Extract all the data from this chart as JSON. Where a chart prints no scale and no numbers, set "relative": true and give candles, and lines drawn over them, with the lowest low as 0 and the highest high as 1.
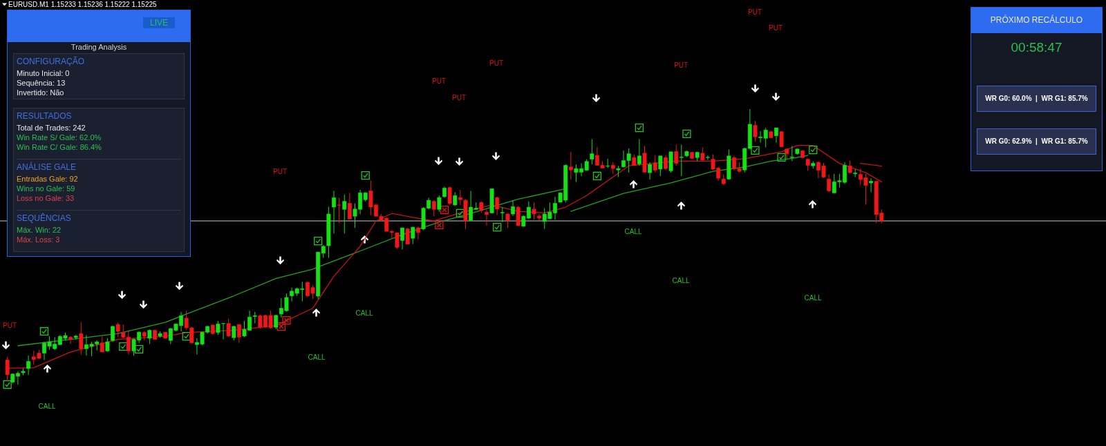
{
  "chart_data": [
    {
      "type": "candlestick",
      "title": "EURUSD.M1  1.15233 1.15236 1.15222 1.15225",
      "relative": true,
      "categories": [
        null,
        null,
        null,
        null,
        null,
        null,
        null,
        null,
        null,
        null,
        null,
        null,
        null,
        null,
        null,
        null,
        null,
        null,
        null,
        null,
        null,
        null,
        null,
        null,
        null,
        null,
        null,
        null,
        null,
        null,
        null,
        null,
        null,
        null,
        null,
        null,
        null,
        null,
        null,
        null,
        null,
        null,
        null,
        null,
        null,
        null,
        null,
        null,
        null,
        null,
        null,
        null,
        null,
        null,
        null,
        null,
        null,
        null,
        null,
        null,
        null,
        null,
        null,
        null,
        null,
        null,
        null,
        null,
        null,
        null,
        null,
        null,
        null,
        null,
        null,
        null,
        null,
        null,
        null,
        null,
        null,
        null,
        null,
        null,
        null,
        null,
        null,
        null,
        null,
        null,
        null,
        null,
        null,
        null,
        null,
        null,
        null,
        null,
        null,
        null,
        null,
        null,
        null,
        null,
        null,
        null,
        null,
        null,
        null,
        null,
        null,
        null,
        null,
        null,
        null,
        null,
        null,
        null,
        null,
        null,
        null,
        null,
        null,
        null,
        null,
        null,
        null,
        null,
        null,
        null,
        null,
        null,
        null,
        null,
        null,
        null,
        null,
        null,
        null,
        null,
        null,
        null,
        null,
        null,
        null,
        null,
        null,
        null,
        null,
        null,
        null,
        null,
        null,
        null,
        null,
        null,
        null,
        null,
        null,
        null,
        null,
        null,
        null,
        null,
        null,
        null,
        null
      ],
      "ohlc": [
        [
          0.089,
          0.101,
          0.013,
          0.036
        ],
        [
          0.009,
          0.041,
          0.005,
          0.038
        ],
        [
          0.03,
          0.047,
          0.0,
          0.041
        ],
        [
          0.043,
          0.059,
          0.034,
          0.048
        ],
        [
          0.058,
          0.105,
          0.036,
          0.084
        ],
        [
          0.101,
          0.122,
          0.072,
          0.091
        ],
        [
          0.114,
          0.126,
          0.093,
          0.095
        ],
        [
          0.114,
          0.155,
          0.089,
          0.151
        ],
        [
          0.139,
          0.176,
          0.126,
          0.155
        ],
        [
          0.13,
          0.172,
          0.126,
          0.147
        ],
        [
          0.145,
          0.18,
          0.143,
          0.175
        ],
        [
          0.168,
          0.189,
          0.16,
          0.178
        ],
        [
          0.172,
          0.176,
          0.147,
          0.164
        ],
        [
          0.171,
          0.18,
          0.164,
          0.176
        ],
        [
          0.185,
          0.226,
          0.109,
          0.13
        ],
        [
          0.13,
          0.18,
          0.105,
          0.145
        ],
        [
          0.139,
          0.155,
          0.103,
          0.147
        ],
        [
          0.147,
          0.161,
          0.124,
          0.155
        ],
        [
          0.151,
          0.176,
          0.118,
          0.118
        ],
        [
          0.122,
          0.168,
          0.119,
          0.155
        ],
        [
          0.16,
          0.214,
          0.155,
          0.211
        ],
        [
          0.218,
          0.225,
          0.172,
          0.193
        ],
        [
          0.189,
          0.218,
          0.168,
          0.172
        ],
        [
          0.172,
          0.197,
          0.109,
          0.122
        ],
        [
          0.122,
          0.168,
          0.105,
          0.164
        ],
        [
          0.161,
          0.193,
          0.151,
          0.19
        ],
        [
          0.189,
          0.193,
          0.161,
          0.176
        ],
        [
          0.168,
          0.2,
          0.147,
          0.197
        ],
        [
          0.197,
          0.2,
          0.164,
          0.164
        ],
        [
          0.176,
          0.193,
          0.17,
          0.185
        ],
        [
          0.19,
          0.191,
          0.166,
          0.168
        ],
        [
          0.16,
          0.206,
          0.147,
          0.203
        ],
        [
          0.197,
          0.222,
          0.193,
          0.22
        ],
        [
          0.214,
          0.264,
          0.193,
          0.25
        ],
        [
          0.241,
          0.268,
          0.198,
          0.206
        ],
        [
          0.206,
          0.21,
          0.151,
          0.151
        ],
        [
          0.145,
          0.168,
          0.109,
          0.153
        ],
        [
          0.147,
          0.193,
          0.143,
          0.19
        ],
        [
          0.19,
          0.214,
          0.185,
          0.211
        ],
        [
          0.216,
          0.218,
          0.18,
          0.185
        ],
        [
          0.189,
          0.231,
          0.18,
          0.22
        ],
        [
          0.221,
          0.222,
          0.164,
          0.222
        ],
        [
          0.222,
          0.239,
          0.172,
          0.176
        ],
        [
          0.17,
          0.214,
          0.16,
          0.211
        ],
        [
          0.218,
          0.218,
          0.151,
          0.172
        ],
        [
          0.176,
          0.231,
          0.172,
          0.2
        ],
        [
          0.197,
          0.268,
          0.195,
          0.245
        ],
        [
          0.247,
          0.264,
          0.222,
          0.25
        ],
        [
          0.25,
          0.253,
          0.203,
          0.208
        ],
        [
          0.251,
          0.253,
          0.206,
          0.208
        ],
        [
          0.251,
          0.268,
          0.203,
          0.206
        ],
        [
          0.208,
          0.253,
          0.201,
          0.251
        ],
        [
          0.256,
          0.314,
          0.243,
          0.277
        ],
        [
          0.268,
          0.331,
          0.264,
          0.316
        ],
        [
          0.322,
          0.352,
          0.302,
          0.339
        ],
        [
          0.331,
          0.352,
          0.322,
          0.348
        ],
        [
          0.345,
          0.373,
          0.302,
          0.348
        ],
        [
          0.371,
          0.375,
          0.318,
          0.322
        ],
        [
          0.352,
          0.36,
          0.31,
          0.331
        ],
        [
          0.321,
          0.481,
          0.31,
          0.481
        ],
        [
          0.477,
          0.506,
          0.46,
          0.502
        ],
        [
          0.504,
          0.645,
          0.46,
          0.619
        ],
        [
          0.644,
          0.703,
          0.548,
          0.678
        ],
        [
          0.652,
          0.678,
          0.586,
          0.651
        ],
        [
          0.636,
          0.69,
          0.548,
          0.665
        ],
        [
          0.658,
          0.696,
          0.601,
          0.601
        ],
        [
          0.611,
          0.657,
          0.569,
          0.637
        ],
        [
          0.636,
          0.707,
          0.619,
          0.696
        ],
        [
          0.671,
          0.698,
          0.665,
          0.696
        ],
        [
          0.703,
          0.74,
          0.615,
          0.644
        ],
        [
          0.652,
          0.657,
          0.611,
          0.611
        ],
        [
          0.611,
          0.619,
          0.594,
          0.596
        ],
        [
          0.604,
          0.607,
          0.556,
          0.556
        ],
        [
          0.556,
          0.561,
          0.531,
          0.552
        ],
        [
          0.551,
          0.552,
          0.492,
          0.498
        ],
        [
          0.523,
          0.569,
          0.49,
          0.569
        ],
        [
          0.565,
          0.569,
          0.51,
          0.51
        ],
        [
          0.531,
          0.573,
          0.51,
          0.571
        ],
        [
          0.569,
          0.573,
          0.527,
          0.552
        ],
        [
          0.565,
          0.644,
          0.561,
          0.64
        ],
        [
          0.64,
          0.678,
          0.636,
          0.669
        ],
        [
          0.665,
          0.669,
          0.611,
          0.636
        ],
        [
          0.636,
          0.686,
          0.627,
          0.679
        ],
        [
          0.682,
          0.719,
          0.678,
          0.713
        ],
        [
          0.715,
          0.719,
          0.652,
          0.657
        ],
        [
          0.652,
          0.698,
          0.648,
          0.686
        ],
        [
          0.679,
          0.707,
          0.652,
          0.671
        ],
        [
          0.669,
          0.673,
          0.565,
          0.594
        ],
        [
          0.596,
          0.703,
          0.594,
          0.644
        ],
        [
          0.636,
          0.661,
          0.634,
          0.64
        ],
        [
          0.661,
          0.665,
          0.623,
          0.632
        ],
        [
          0.626,
          0.636,
          0.577,
          0.617
        ],
        [
          0.623,
          0.711,
          0.621,
          0.711
        ],
        [
          0.679,
          0.682,
          0.615,
          0.637
        ],
        [
          0.623,
          0.644,
          0.59,
          0.625
        ],
        [
          0.619,
          0.623,
          0.569,
          0.596
        ],
        [
          0.619,
          0.669,
          0.612,
          0.646
        ],
        [
          0.644,
          0.648,
          0.575,
          0.577
        ],
        [
          0.575,
          0.615,
          0.573,
          0.611
        ],
        [
          0.604,
          0.665,
          0.601,
          0.644
        ],
        [
          0.637,
          0.661,
          0.598,
          0.619
        ],
        [
          0.612,
          0.619,
          0.596,
          0.604
        ],
        [
          0.592,
          0.64,
          0.565,
          0.619
        ],
        [
          0.602,
          0.661,
          0.601,
          0.626
        ],
        [
          0.623,
          0.682,
          0.598,
          0.658
        ],
        [
          0.662,
          0.698,
          0.661,
          0.696
        ],
        [
          0.669,
          0.799,
          0.661,
          0.796
        ],
        [
          0.79,
          0.845,
          0.744,
          0.779
        ],
        [
          0.77,
          0.799,
          0.736,
          0.784
        ],
        [
          0.771,
          0.803,
          0.757,
          0.784
        ],
        [
          0.778,
          0.818,
          0.776,
          0.81
        ],
        [
          0.818,
          0.891,
          0.799,
          0.838
        ],
        [
          0.832,
          0.863,
          0.796,
          0.796
        ],
        [
          0.796,
          0.811,
          0.784,
          0.786
        ],
        [
          0.793,
          0.82,
          0.786,
          0.794
        ],
        [
          0.796,
          0.807,
          0.765,
          0.784
        ],
        [
          0.779,
          0.794,
          0.753,
          0.784
        ],
        [
          0.79,
          0.849,
          0.788,
          0.813
        ],
        [
          0.813,
          0.857,
          0.77,
          0.838
        ],
        [
          0.824,
          0.836,
          0.794,
          0.796
        ],
        [
          0.801,
          0.891,
          0.794,
          0.83
        ],
        [
          0.84,
          0.866,
          0.77,
          0.771
        ],
        [
          0.769,
          0.807,
          0.744,
          0.799
        ],
        [
          0.805,
          0.832,
          0.77,
          0.778
        ],
        [
          0.782,
          0.83,
          0.757,
          0.83
        ],
        [
          0.824,
          0.832,
          0.778,
          0.784
        ],
        [
          0.776,
          0.845,
          0.77,
          0.845
        ],
        [
          0.846,
          0.871,
          0.794,
          0.803
        ],
        [
          0.824,
          0.871,
          0.757,
          0.826
        ],
        [
          0.83,
          0.849,
          0.826,
          0.846
        ],
        [
          0.843,
          0.845,
          0.82,
          0.821
        ],
        [
          0.824,
          0.845,
          0.811,
          0.843
        ],
        [
          0.84,
          0.861,
          0.813,
          0.815
        ],
        [
          0.824,
          0.832,
          0.815,
          0.825
        ],
        [
          0.818,
          0.836,
          0.779,
          0.782
        ],
        [
          0.786,
          0.79,
          0.74,
          0.749
        ],
        [
          0.746,
          0.763,
          0.723,
          0.729
        ],
        [
          0.746,
          0.853,
          0.744,
          0.83
        ],
        [
          0.824,
          0.83,
          0.778,
          0.784
        ],
        [
          0.784,
          0.807,
          0.77,
          0.774
        ],
        [
          0.779,
          0.86,
          0.77,
          0.857
        ],
        [
          0.857,
          1.0,
          0.853,
          0.945
        ],
        [
          0.941,
          0.957,
          0.882,
          0.899
        ],
        [
          0.896,
          0.92,
          0.878,
          0.899
        ],
        [
          0.894,
          0.932,
          0.861,
          0.924
        ],
        [
          0.918,
          0.92,
          0.896,
          0.896
        ],
        [
          0.903,
          0.932,
          0.878,
          0.932
        ],
        [
          0.918,
          0.92,
          0.861,
          0.863
        ],
        [
          0.855,
          0.857,
          0.82,
          0.838
        ],
        [
          0.824,
          0.866,
          0.811,
          0.826
        ],
        [
          0.838,
          0.857,
          0.835,
          0.855
        ],
        [
          0.849,
          0.851,
          0.821,
          0.824
        ],
        [
          0.818,
          0.821,
          0.776,
          0.796
        ],
        [
          0.794,
          0.811,
          0.784,
          0.803
        ],
        [
          0.807,
          0.81,
          0.749,
          0.778
        ],
        [
          0.794,
          0.805,
          0.75,
          0.753
        ],
        [
          0.746,
          0.763,
          0.698,
          0.703
        ],
        [
          0.696,
          0.765,
          0.694,
          0.736
        ],
        [
          0.736,
          0.765,
          0.715,
          0.74
        ],
        [
          0.734,
          0.807,
          0.728,
          0.796
        ],
        [
          0.794,
          0.813,
          0.769,
          0.769
        ],
        [
          0.765,
          0.782,
          0.753,
          0.768
        ],
        [
          0.763,
          0.784,
          0.723,
          0.744
        ],
        [
          0.751,
          0.765,
          0.653,
          0.723
        ],
        [
          0.732,
          0.749,
          0.698,
          0.738
        ],
        [
          0.738,
          0.74,
          0.586,
          0.617
        ],
        [
          0.623,
          0.636,
          0.586,
          0.594
        ]
      ],
      "series": [
        {
          "type": "line",
          "color": "#1fa21f",
          "values": [
            null,
            null,
            0.141,
            null,
            null,
            null,
            null,
            null,
            null,
            null,
            null,
            null,
            0.164,
            null,
            null,
            null,
            null,
            null,
            null,
            null,
            null,
            0.185,
            null,
            null,
            null,
            null,
            null,
            null,
            null,
            null,
            0.226,
            null,
            null,
            null,
            0.256,
            null,
            null,
            null,
            null,
            null,
            null,
            null,
            null,
            0.322,
            null,
            null,
            null,
            null,
            null,
            null,
            null,
            0.385,
            null,
            null,
            null,
            null,
            null,
            null,
            0.419,
            0.427,
            null,
            null,
            null,
            null,
            null,
            null,
            null,
            0.485,
            null,
            null,
            null,
            null,
            null,
            null,
            null,
            0.544,
            null,
            null,
            null,
            null,
            null,
            null,
            0.59,
            null,
            null,
            null,
            null,
            null,
            0.621,
            null,
            null,
            null,
            null,
            null,
            null,
            null,
            null,
            0.673,
            null,
            null,
            null,
            null,
            null,
            null,
            null,
            null,
            0.711,
            null,
            null,
            null,
            null,
            null,
            null,
            null,
            null,
            null,
            null,
            null,
            null,
            null,
            null,
            null,
            null,
            null,
            null,
            null,
            null,
            null,
            null,
            null,
            null,
            null,
            null,
            null,
            null,
            null,
            null,
            null,
            null,
            null,
            null,
            null,
            null,
            null,
            null,
            null,
            null,
            null,
            null,
            null,
            null,
            null,
            null,
            null,
            null,
            null,
            null,
            null,
            null,
            null,
            null,
            null,
            null,
            null,
            null,
            null,
            null
          ]
        },
        {
          "type": "line",
          "color": "#1fa21f",
          "values": [
            null,
            null,
            null,
            null,
            null,
            null,
            null,
            null,
            null,
            null,
            null,
            null,
            null,
            null,
            null,
            null,
            null,
            null,
            null,
            null,
            null,
            null,
            null,
            null,
            null,
            null,
            null,
            null,
            null,
            null,
            null,
            null,
            null,
            null,
            null,
            null,
            null,
            null,
            null,
            null,
            null,
            null,
            null,
            null,
            null,
            null,
            null,
            null,
            null,
            null,
            null,
            null,
            null,
            null,
            null,
            null,
            null,
            null,
            null,
            null,
            null,
            null,
            null,
            null,
            null,
            null,
            null,
            null,
            null,
            null,
            null,
            null,
            null,
            null,
            null,
            null,
            null,
            null,
            null,
            null,
            null,
            null,
            null,
            null,
            null,
            null,
            null,
            null,
            null,
            null,
            null,
            null,
            null,
            null,
            null,
            null,
            null,
            null,
            null,
            null,
            null,
            null,
            null,
            null,
            null,
            null,
            null,
            0.629,
            null,
            null,
            null,
            null,
            null,
            null,
            null,
            null,
            null,
            0.694,
            null,
            null,
            null,
            null,
            null,
            null,
            null,
            null,
            0.732,
            null,
            null,
            null,
            null,
            null,
            null,
            null,
            0.774,
            null,
            null,
            null,
            null,
            null,
            0.79,
            null,
            null,
            null,
            null,
            0.811,
            null,
            null,
            null,
            0.821,
            null,
            null,
            0.832,
            null,
            null,
            null,
            null,
            null,
            null,
            null,
            null,
            null,
            null,
            null,
            null,
            null,
            null
          ]
        },
        {
          "type": "line",
          "color": "#c81414",
          "values": [
            0.059,
            null,
            null,
            null,
            null,
            0.061,
            null,
            null,
            null,
            null,
            null,
            null,
            0.118,
            null,
            null,
            null,
            null,
            null,
            null,
            null,
            null,
            0.164,
            null,
            null,
            null,
            null,
            null,
            null,
            null,
            null,
            0.175,
            null,
            null,
            null,
            0.189,
            null,
            null,
            null,
            null,
            null,
            null,
            null,
            null,
            0.197,
            null,
            null,
            null,
            null,
            null,
            null,
            null,
            0.214,
            null,
            null,
            null,
            null,
            null,
            null,
            0.277,
            null,
            null,
            null,
            0.393,
            null,
            null,
            null,
            null,
            0.502,
            null,
            null,
            0.594,
            null,
            null,
            0.621,
            null,
            null,
            null,
            0.607,
            null,
            null,
            null,
            0.594,
            null,
            null,
            null,
            null,
            0.623,
            null,
            null,
            null,
            null,
            null,
            0.652,
            null,
            null,
            null,
            null,
            0.629,
            null,
            null,
            null,
            null,
            0.623,
            null,
            null,
            null,
            0.644,
            null,
            null,
            null,
            0.686,
            null,
            null,
            null,
            null,
            null,
            null,
            null,
            0.794,
            null,
            null,
            null,
            null,
            null,
            null,
            null,
            null,
            0.811,
            null,
            null,
            null,
            null,
            null,
            null,
            0.811,
            null,
            null,
            null,
            null,
            null,
            0.82,
            null,
            null,
            null,
            null,
            null,
            null,
            0.845,
            null,
            null,
            0.868,
            null,
            null,
            0.868,
            null,
            null,
            null,
            null,
            0.803,
            null,
            null,
            null,
            null,
            0.769,
            null,
            null,
            0.736
          ]
        },
        {
          "type": "line",
          "color": "#c81414",
          "values": [
            null,
            null,
            null,
            null,
            null,
            null,
            null,
            null,
            null,
            null,
            null,
            null,
            null,
            null,
            null,
            null,
            null,
            null,
            null,
            null,
            null,
            null,
            null,
            null,
            null,
            null,
            null,
            null,
            null,
            null,
            null,
            null,
            null,
            null,
            null,
            null,
            null,
            null,
            null,
            null,
            null,
            null,
            null,
            null,
            null,
            null,
            null,
            null,
            null,
            null,
            null,
            null,
            null,
            null,
            null,
            null,
            null,
            null,
            null,
            null,
            null,
            null,
            null,
            null,
            null,
            null,
            null,
            null,
            null,
            null,
            null,
            null,
            null,
            null,
            null,
            null,
            null,
            null,
            null,
            null,
            null,
            null,
            null,
            null,
            null,
            null,
            null,
            null,
            null,
            null,
            null,
            null,
            null,
            null,
            null,
            null,
            null,
            null,
            null,
            null,
            null,
            null,
            null,
            null,
            null,
            null,
            null,
            null,
            null,
            null,
            null,
            null,
            null,
            null,
            null,
            null,
            null,
            null,
            null,
            null,
            null,
            null,
            null,
            null,
            null,
            null,
            null,
            null,
            null,
            null,
            null,
            null,
            null,
            null,
            null,
            null,
            null,
            null,
            null,
            null,
            null,
            null,
            null,
            null,
            null,
            null,
            null,
            null,
            null,
            null,
            null,
            null,
            null,
            null,
            null,
            null,
            null,
            null,
            null,
            null,
            null,
            null,
            0.803,
            null,
            null,
            null,
            0.793
          ]
        },
        {
          "type": "scatter",
          "color": "#1ec81e",
          "values": [
            0.0,
            null,
            null,
            null,
            null,
            null,
            null,
            0.193,
            null,
            null,
            null,
            null,
            null,
            null,
            null,
            null,
            null,
            null,
            null,
            null,
            null,
            null,
            0.138,
            null,
            null,
            0.128,
            null,
            null,
            null,
            null,
            null,
            null,
            null,
            null,
            0.175,
            null,
            null,
            null,
            null,
            null,
            null,
            null,
            null,
            null,
            null,
            null,
            null,
            null,
            null,
            null,
            null,
            null,
            null,
            null,
            null,
            null,
            null,
            null,
            null,
            0.521,
            null,
            null,
            null,
            null,
            null,
            null,
            null,
            null,
            0.759,
            null,
            null,
            null,
            null,
            null,
            null,
            null,
            null,
            null,
            null,
            null,
            null,
            null,
            null,
            null,
            null,
            null,
            0.622,
            null,
            null,
            null,
            null,
            null,
            null,
            0.571,
            null,
            null,
            null,
            null,
            null,
            null,
            null,
            null,
            null,
            null,
            null,
            null,
            null,
            null,
            null,
            null,
            null,
            null,
            0.757,
            null,
            null,
            null,
            null,
            null,
            null,
            null,
            0.932,
            null,
            null,
            null,
            null,
            null,
            null,
            null,
            null,
            0.91,
            null,
            null,
            null,
            null,
            null,
            null,
            null,
            null,
            null,
            null,
            null,
            null,
            0.85,
            null,
            null,
            null,
            null,
            0.825,
            null,
            null,
            null,
            null,
            null,
            0.852,
            null,
            null,
            null,
            null,
            null,
            null,
            null,
            null,
            null,
            null,
            null,
            null,
            null
          ]
        },
        {
          "type": "scatter",
          "marker": "cross",
          "color": "#e01818",
          "values": [
            null,
            null,
            null,
            null,
            null,
            null,
            null,
            null,
            null,
            null,
            null,
            null,
            null,
            null,
            null,
            null,
            null,
            null,
            null,
            null,
            null,
            null,
            null,
            null,
            null,
            null,
            null,
            null,
            null,
            null,
            null,
            null,
            null,
            null,
            null,
            null,
            null,
            null,
            null,
            null,
            null,
            null,
            null,
            null,
            null,
            null,
            null,
            null,
            null,
            null,
            null,
            null,
            0.211,
            0.233,
            null,
            null,
            null,
            null,
            null,
            null,
            null,
            null,
            null,
            null,
            null,
            null,
            null,
            null,
            null,
            null,
            null,
            null,
            null,
            null,
            null,
            null,
            null,
            null,
            null,
            null,
            null,
            null,
            0.579,
            0.634,
            null,
            null,
            null,
            null,
            null,
            null,
            null,
            null,
            null,
            null,
            null,
            null,
            null,
            null,
            null,
            null,
            null,
            null,
            null,
            null,
            null,
            null,
            null,
            null,
            null,
            null,
            null,
            null,
            null,
            null,
            null,
            null,
            null,
            null,
            null,
            null,
            null,
            null,
            null,
            null,
            null,
            null,
            null,
            null,
            null,
            null,
            null,
            null,
            null,
            null,
            null,
            null,
            null,
            null,
            null,
            null,
            null,
            null,
            null,
            null,
            null,
            null,
            null,
            null,
            null,
            null,
            null,
            null,
            null,
            null,
            null,
            null,
            null,
            null,
            null,
            null,
            null,
            null,
            null,
            null,
            null,
            null,
            null
          ]
        }
      ],
      "ref_lines": [
        {
          "axis": "y",
          "value": 0.594,
          "color": "#c8c8d0"
        }
      ],
      "annotations": [
        "PUT",
        "PUT",
        "PUT",
        "PUT",
        "PUT",
        "PUT",
        "PUT",
        "PUT",
        "CALL",
        "CALL",
        "CALL",
        "CALL",
        "CALL",
        "CALL"
      ]
    },
    {
      "type": "other",
      "subtitle": "Trading Analysis",
      "annotations": [
        "LIVE",
        "CONFIGURAÇÃO",
        "Minuto Inicial: 0",
        "Sequência: 13",
        "Invertido: Não",
        "RESULTADOS",
        "Total de Trades: 242",
        "Win Rate S/ Gale: 62.0%",
        "Win Rate C/ Gale: 86.4%",
        "ANÁLISE GALE",
        "Entradas Gale: 92",
        "Wins no Gale: 59",
        "Loss no Gale: 33",
        "SEQUÊNCIAS",
        "Máx. Win: 22",
        "Máx. Loss: 3"
      ]
    },
    {
      "type": "other",
      "title": "PRÓXIMO RECÁLCULO",
      "annotations": [
        "00:58:47",
        "WR G0: 60.0%  |  WR G1: 85.7%",
        "WR G0: 62.9%  |  WR G1: 85.7%"
      ]
    }
  ]
}
